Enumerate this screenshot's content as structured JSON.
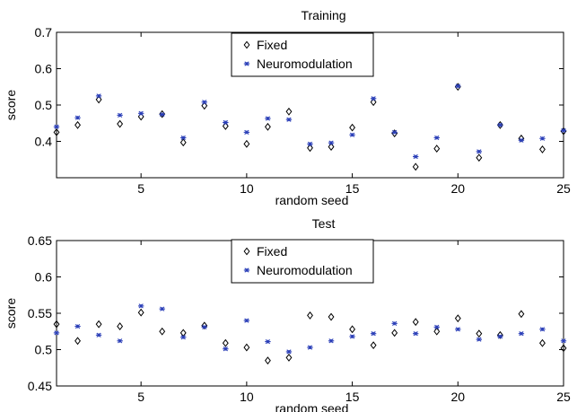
{
  "chart_data": [
    {
      "type": "scatter",
      "title": "Training",
      "xlabel": "random seed",
      "ylabel": "score",
      "xlim": [
        1,
        25
      ],
      "ylim": [
        0.3,
        0.7
      ],
      "xticks": [
        "5",
        "10",
        "15",
        "20",
        "25"
      ],
      "yticks": [
        "0.4",
        "0.5",
        "0.6",
        "0.7"
      ],
      "legend_position": "top-center",
      "grid": false,
      "x": [
        1,
        2,
        3,
        4,
        5,
        6,
        7,
        8,
        9,
        10,
        11,
        12,
        13,
        14,
        15,
        16,
        17,
        18,
        19,
        20,
        21,
        22,
        23,
        24,
        25
      ],
      "series": [
        {
          "name": "Fixed",
          "marker": "diamond",
          "color": "#000000",
          "values": [
            0.425,
            0.445,
            0.515,
            0.448,
            0.468,
            0.475,
            0.397,
            0.498,
            0.442,
            0.393,
            0.44,
            0.482,
            0.382,
            0.385,
            0.438,
            0.508,
            0.422,
            0.33,
            0.38,
            0.55,
            0.355,
            0.445,
            0.408,
            0.378,
            0.428
          ]
        },
        {
          "name": "Neuromodulation",
          "marker": "asterisk",
          "color": "#2b3fb8",
          "values": [
            0.44,
            0.465,
            0.525,
            0.472,
            0.477,
            0.474,
            0.41,
            0.508,
            0.452,
            0.425,
            0.463,
            0.46,
            0.393,
            0.396,
            0.418,
            0.518,
            0.425,
            0.358,
            0.41,
            0.552,
            0.372,
            0.445,
            0.403,
            0.408,
            0.43
          ]
        }
      ]
    },
    {
      "type": "scatter",
      "title": "Test",
      "xlabel": "random seed",
      "ylabel": "score",
      "xlim": [
        1,
        25
      ],
      "ylim": [
        0.45,
        0.65
      ],
      "xticks": [
        "5",
        "10",
        "15",
        "20",
        "25"
      ],
      "yticks": [
        "0.45",
        "0.5",
        "0.55",
        "0.6",
        "0.65"
      ],
      "legend_position": "top-center",
      "grid": false,
      "x": [
        1,
        2,
        3,
        4,
        5,
        6,
        7,
        8,
        9,
        10,
        11,
        12,
        13,
        14,
        15,
        16,
        17,
        18,
        19,
        20,
        21,
        22,
        23,
        24,
        25
      ],
      "series": [
        {
          "name": "Fixed",
          "marker": "diamond",
          "color": "#000000",
          "values": [
            0.535,
            0.512,
            0.535,
            0.532,
            0.551,
            0.525,
            0.523,
            0.533,
            0.509,
            0.503,
            0.485,
            0.489,
            0.547,
            0.545,
            0.528,
            0.506,
            0.523,
            0.538,
            0.525,
            0.543,
            0.522,
            0.52,
            0.549,
            0.509,
            0.502
          ]
        },
        {
          "name": "Neuromodulation",
          "marker": "asterisk",
          "color": "#2b3fb8",
          "values": [
            0.523,
            0.532,
            0.52,
            0.512,
            0.56,
            0.556,
            0.517,
            0.531,
            0.501,
            0.54,
            0.511,
            0.497,
            0.503,
            0.512,
            0.518,
            0.522,
            0.536,
            0.522,
            0.531,
            0.528,
            0.514,
            0.518,
            0.522,
            0.528,
            0.512
          ]
        }
      ]
    }
  ]
}
